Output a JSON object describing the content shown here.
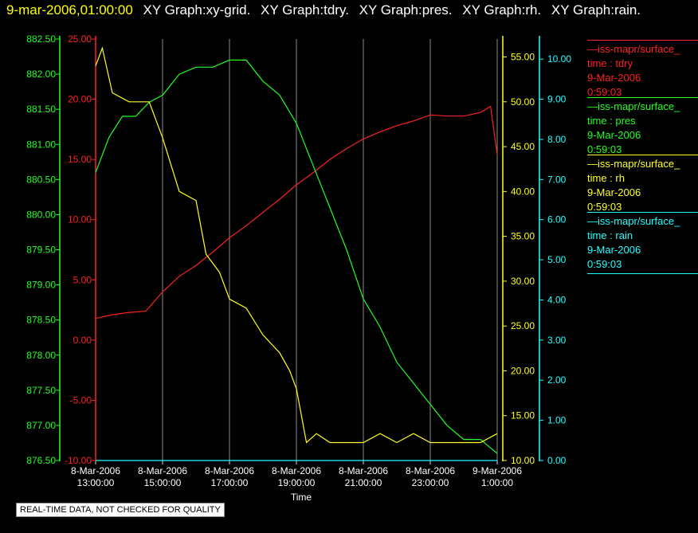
{
  "header": {
    "timestamp": "9-mar-2006,01:00:00",
    "graph_titles": [
      "XY Graph:xy-grid.",
      "XY Graph:tdry.",
      "XY Graph:pres.",
      "XY Graph:rh.",
      "XY Graph:rain."
    ]
  },
  "disclaimer": "REAL-TIME DATA, NOT CHECKED FOR QUALITY",
  "legend": [
    {
      "source": "iss-mapr/surface_",
      "field": "time : tdry",
      "date": "9-Mar-2006",
      "time": "0:59:03",
      "color": "#ff2020"
    },
    {
      "source": "iss-mapr/surface_",
      "field": "time : pres",
      "date": "9-Mar-2006",
      "time": "0:59:03",
      "color": "#20ff20"
    },
    {
      "source": "iss-mapr/surface_",
      "field": "time : rh",
      "date": "9-Mar-2006",
      "time": "0:59:03",
      "color": "#ffff20"
    },
    {
      "source": "iss-mapr/surface_",
      "field": "time : rain",
      "date": "9-Mar-2006",
      "time": "0:59:03",
      "color": "#20ffff"
    }
  ],
  "chart_data": {
    "type": "line",
    "xlabel": "Time",
    "x_ticks": [
      {
        "hours": 0,
        "date": "8-Mar-2006",
        "time": "13:00:00"
      },
      {
        "hours": 2,
        "date": "8-Mar-2006",
        "time": "15:00:00"
      },
      {
        "hours": 4,
        "date": "8-Mar-2006",
        "time": "17:00:00"
      },
      {
        "hours": 6,
        "date": "8-Mar-2006",
        "time": "19:00:00"
      },
      {
        "hours": 8,
        "date": "8-Mar-2006",
        "time": "21:00:00"
      },
      {
        "hours": 10,
        "date": "8-Mar-2006",
        "time": "23:00:00"
      },
      {
        "hours": 12,
        "date": "9-Mar-2006",
        "time": "1:00:00"
      }
    ],
    "x_range_hours": [
      0,
      12
    ],
    "axes": {
      "pres": {
        "color": "#20ff20",
        "range": [
          876.5,
          882.5
        ],
        "ticks": [
          "876.50",
          "877.00",
          "877.50",
          "878.00",
          "878.50",
          "879.00",
          "879.50",
          "880.00",
          "880.50",
          "881.00",
          "881.50",
          "882.00",
          "882.50"
        ]
      },
      "tdry": {
        "color": "#ff2020",
        "range": [
          -10,
          25
        ],
        "ticks": [
          "-10.00",
          "-5.00",
          "0.00",
          "5.00",
          "10.00",
          "15.00",
          "20.00",
          "25.00"
        ]
      },
      "rh": {
        "color": "#ffff20",
        "range": [
          10,
          57
        ],
        "ticks": [
          "10.00",
          "15.00",
          "20.00",
          "25.00",
          "30.00",
          "35.00",
          "40.00",
          "45.00",
          "50.00",
          "55.00"
        ]
      },
      "rain": {
        "color": "#20ffff",
        "range": [
          0,
          10.5
        ],
        "ticks": [
          "0.00",
          "1.00",
          "2.00",
          "3.00",
          "4.00",
          "5.00",
          "6.00",
          "7.00",
          "8.00",
          "9.00",
          "10.00"
        ]
      }
    },
    "series": [
      {
        "name": "tdry",
        "axis": "tdry",
        "color": "#ff2020",
        "x": [
          0,
          0.5,
          1,
          1.5,
          2,
          2.5,
          3,
          3.5,
          4,
          4.5,
          5,
          5.5,
          6,
          6.5,
          7,
          7.5,
          8,
          8.5,
          9,
          9.5,
          10,
          10.5,
          11,
          11.5,
          11.8,
          12
        ],
        "y": [
          1.8,
          2.1,
          2.3,
          2.4,
          4.0,
          5.3,
          6.2,
          7.3,
          8.5,
          9.5,
          10.6,
          11.7,
          12.9,
          13.9,
          15.0,
          15.9,
          16.7,
          17.3,
          17.8,
          18.2,
          18.7,
          18.6,
          18.6,
          18.9,
          19.4,
          15.4
        ]
      },
      {
        "name": "pres",
        "axis": "pres",
        "color": "#20ff20",
        "x": [
          0,
          0.4,
          0.8,
          1.2,
          1.6,
          2,
          2.5,
          3,
          3.5,
          4,
          4.5,
          5,
          5.5,
          6,
          6.5,
          7,
          7.5,
          8,
          8.5,
          9,
          9.5,
          10,
          10.5,
          11,
          11.5,
          12
        ],
        "y": [
          880.6,
          881.1,
          881.4,
          881.4,
          881.6,
          881.7,
          882.0,
          882.1,
          882.1,
          882.2,
          882.2,
          881.9,
          881.7,
          881.3,
          880.7,
          880.1,
          879.5,
          878.8,
          878.4,
          877.9,
          877.6,
          877.3,
          877.0,
          876.8,
          876.8,
          876.6
        ]
      },
      {
        "name": "rh",
        "axis": "rh",
        "color": "#ffff20",
        "x": [
          0,
          0.2,
          0.5,
          1,
          1.3,
          1.6,
          2,
          2.5,
          3,
          3.3,
          3.7,
          4,
          4.5,
          5,
          5.5,
          5.8,
          6,
          6.3,
          6.6,
          7,
          7.5,
          8,
          8.5,
          9,
          9.5,
          10,
          10.5,
          11,
          11.5,
          12
        ],
        "y": [
          54,
          56,
          51,
          50,
          50,
          50,
          46,
          40,
          39,
          33,
          31,
          28,
          27,
          24,
          22,
          20,
          18,
          12,
          13,
          12,
          12,
          12,
          13,
          12,
          13,
          12,
          12,
          12,
          12,
          13
        ]
      },
      {
        "name": "rain",
        "axis": "rain",
        "color": "#20ffff",
        "x": [
          0,
          12
        ],
        "y": [
          0,
          0
        ]
      }
    ]
  }
}
